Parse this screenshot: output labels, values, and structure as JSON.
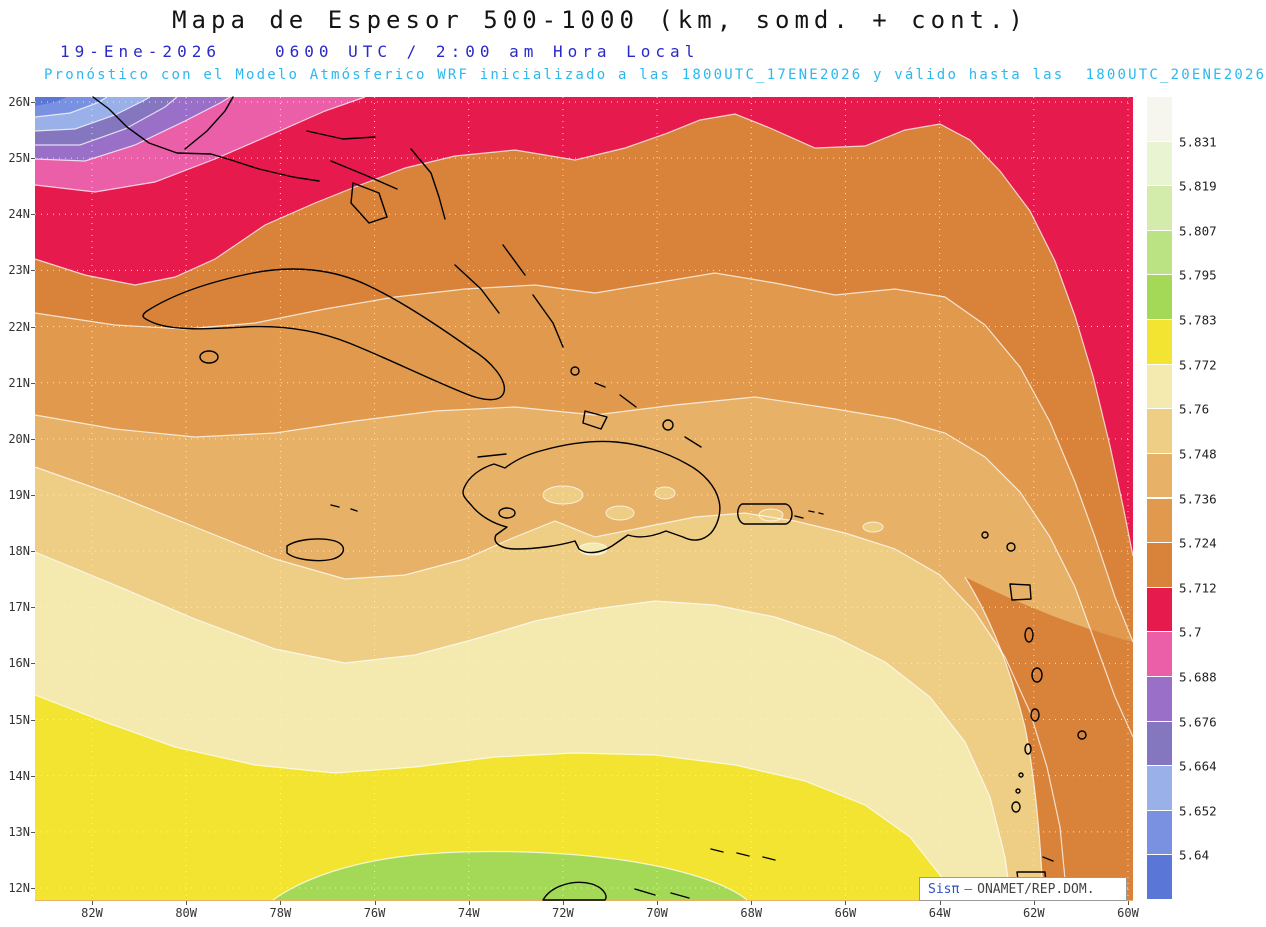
{
  "header": {
    "title": "Mapa de Espesor 500-1000 (km, somd. + cont.)",
    "date": "19-Ene-2026",
    "time": "0600 UTC / 2:00 am Hora Local",
    "forecast_note": "Pronóstico con el Modelo Atmósferico WRF inicializado a las 1800UTC_17ENE2026 y válido hasta las  1800UTC_20ENE2026"
  },
  "map": {
    "lat_labels": [
      "26N",
      "25N",
      "24N",
      "23N",
      "22N",
      "21N",
      "20N",
      "19N",
      "18N",
      "17N",
      "16N",
      "15N",
      "14N",
      "13N",
      "12N"
    ],
    "lon_labels": [
      "82W",
      "80W",
      "78W",
      "76W",
      "74W",
      "72W",
      "70W",
      "68W",
      "66W",
      "64W",
      "62W",
      "60W"
    ]
  },
  "colorbar": {
    "labels": [
      "5.831",
      "5.819",
      "5.807",
      "5.795",
      "5.783",
      "5.772",
      "5.76",
      "5.748",
      "5.736",
      "5.724",
      "5.712",
      "5.7",
      "5.688",
      "5.676",
      "5.664",
      "5.652",
      "5.64"
    ],
    "colors": [
      "#f6f6ee",
      "#e9f4d3",
      "#d4ecab",
      "#bbe383",
      "#a3d957",
      "#f2e431",
      "#f4e9af",
      "#eecd85",
      "#e7b167",
      "#e0994d",
      "#d8823a",
      "#e61a4c",
      "#ea5fa7",
      "#9a6fc8",
      "#8477c0",
      "#9ab0e8",
      "#7a90e0",
      "#5a77d8"
    ]
  },
  "credit": {
    "brand": "Sisπ",
    "separator": "—",
    "org": "ONAMET/REP.DOM."
  }
}
